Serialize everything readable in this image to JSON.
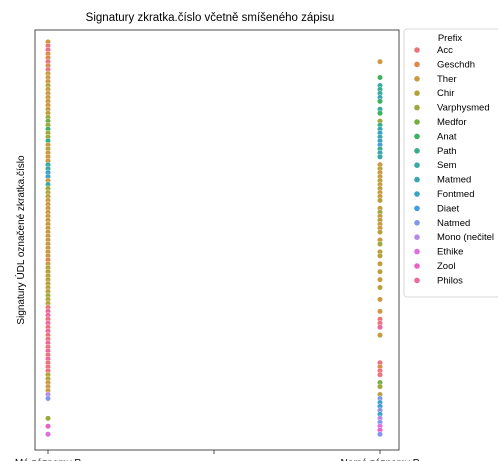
{
  "chart_data": {
    "type": "scatter",
    "title": "Signatury zkratka.číslo včetně smíšeného zápisu",
    "xlabel": "",
    "ylabel": "Signatury ÚDL označené zkratka.číslo",
    "categories": [
      "Má záznamy P",
      "Nemá záznamy P"
    ],
    "legend_placement": "outside-right",
    "legend": {
      "title": "Prefix",
      "entries": [
        {
          "name": "Acc",
          "color": "#e8747e"
        },
        {
          "name": "Geschdh",
          "color": "#dc8a4b"
        },
        {
          "name": "Ther",
          "color": "#c99a42"
        },
        {
          "name": "Chir",
          "color": "#b6a23b"
        },
        {
          "name": "Varphysmed",
          "color": "#9ea93c"
        },
        {
          "name": "Medfor",
          "color": "#74ad48"
        },
        {
          "name": "Anat",
          "color": "#3db160"
        },
        {
          "name": "Path",
          "color": "#37ad8c"
        },
        {
          "name": "Sem",
          "color": "#38aa9f"
        },
        {
          "name": "Matmed",
          "color": "#39a7af"
        },
        {
          "name": "Fontmed",
          "color": "#3aa2c2"
        },
        {
          "name": "Diaet",
          "color": "#459bdd"
        },
        {
          "name": "Natmed",
          "color": "#8496e8"
        },
        {
          "name": "Mono (nečitel",
          "color": "#b48ae6"
        },
        {
          "name": "Ethike",
          "color": "#df6ee0"
        },
        {
          "name": "Zool",
          "color": "#e864c4"
        },
        {
          "name": "Philos",
          "color": "#eb6a9e"
        }
      ]
    },
    "series": [
      {
        "category": "Má záznamy P",
        "points": [
          [
            0,
            "Ther"
          ],
          [
            1,
            "Acc"
          ],
          [
            2,
            "Acc"
          ],
          [
            3,
            "Geschdh"
          ],
          [
            4,
            "Geschdh"
          ],
          [
            5,
            "Acc"
          ],
          [
            6,
            "Geschdh"
          ],
          [
            7,
            "Acc"
          ],
          [
            8,
            "Ther"
          ],
          [
            9,
            "Ther"
          ],
          [
            10,
            "Ther"
          ],
          [
            11,
            "Chir"
          ],
          [
            12,
            "Ther"
          ],
          [
            13,
            "Ther"
          ],
          [
            14,
            "Ther"
          ],
          [
            15,
            "Ther"
          ],
          [
            16,
            "Ther"
          ],
          [
            17,
            "Ther"
          ],
          [
            18,
            "Chir"
          ],
          [
            19,
            "Varphysmed"
          ],
          [
            20,
            "Medfor"
          ],
          [
            21,
            "Varphysmed"
          ],
          [
            22,
            "Anat"
          ],
          [
            23,
            "Varphysmed"
          ],
          [
            24,
            "Varphysmed"
          ],
          [
            25,
            "Path"
          ],
          [
            26,
            "Ther"
          ],
          [
            27,
            "Chir"
          ],
          [
            28,
            "Ther"
          ],
          [
            29,
            "Ther"
          ],
          [
            30,
            "Ther"
          ],
          [
            31,
            "Sem"
          ],
          [
            32,
            "Sem"
          ],
          [
            33,
            "Fontmed"
          ],
          [
            34,
            "Fontmed"
          ],
          [
            35,
            "Ther"
          ],
          [
            36,
            "Sem"
          ],
          [
            37,
            "Varphysmed"
          ],
          [
            38,
            "Chir"
          ],
          [
            39,
            "Chir"
          ],
          [
            40,
            "Ther"
          ],
          [
            41,
            "Ther"
          ],
          [
            42,
            "Ther"
          ],
          [
            43,
            "Ther"
          ],
          [
            44,
            "Ther"
          ],
          [
            45,
            "Ther"
          ],
          [
            46,
            "Ther"
          ],
          [
            47,
            "Ther"
          ],
          [
            48,
            "Ther"
          ],
          [
            49,
            "Ther"
          ],
          [
            50,
            "Ther"
          ],
          [
            51,
            "Ther"
          ],
          [
            52,
            "Ther"
          ],
          [
            53,
            "Ther"
          ],
          [
            54,
            "Ther"
          ],
          [
            55,
            "Geschdh"
          ],
          [
            56,
            "Ther"
          ],
          [
            57,
            "Chir"
          ],
          [
            58,
            "Chir"
          ],
          [
            59,
            "Chir"
          ],
          [
            60,
            "Chir"
          ],
          [
            61,
            "Chir"
          ],
          [
            62,
            "Chir"
          ],
          [
            63,
            "Chir"
          ],
          [
            64,
            "Varphysmed"
          ],
          [
            65,
            "Chir"
          ],
          [
            66,
            "Chir"
          ],
          [
            67,
            "Acc"
          ],
          [
            68,
            "Philos"
          ],
          [
            69,
            "Philos"
          ],
          [
            70,
            "Acc"
          ],
          [
            71,
            "Philos"
          ],
          [
            72,
            "Acc"
          ],
          [
            73,
            "Philos"
          ],
          [
            74,
            "Acc"
          ],
          [
            75,
            "Acc"
          ],
          [
            76,
            "Philos"
          ],
          [
            77,
            "Acc"
          ],
          [
            78,
            "Philos"
          ],
          [
            79,
            "Acc"
          ],
          [
            80,
            "Philos"
          ],
          [
            81,
            "Acc"
          ],
          [
            82,
            "Acc"
          ],
          [
            83,
            "Acc"
          ],
          [
            84,
            "Chir"
          ],
          [
            85,
            "Chir"
          ],
          [
            86,
            "Ther"
          ],
          [
            87,
            "Ther"
          ],
          [
            88,
            "Ther"
          ],
          [
            89,
            "Mono (nečitel"
          ],
          [
            90,
            "Natmed"
          ],
          [
            95,
            "Varphysmed"
          ],
          [
            97,
            "Zool"
          ],
          [
            99,
            "Ethike"
          ]
        ]
      },
      {
        "category": "Nemá záznamy P",
        "points": [
          [
            5,
            "Ther"
          ],
          [
            9,
            "Anat"
          ],
          [
            11,
            "Sem"
          ],
          [
            12,
            "Path"
          ],
          [
            13,
            "Sem"
          ],
          [
            14,
            "Matmed"
          ],
          [
            15,
            "Anat"
          ],
          [
            17,
            "Sem"
          ],
          [
            18,
            "Anat"
          ],
          [
            20,
            "Varphysmed"
          ],
          [
            21,
            "Path"
          ],
          [
            22,
            "Matmed"
          ],
          [
            23,
            "Fontmed"
          ],
          [
            24,
            "Matmed"
          ],
          [
            25,
            "Fontmed"
          ],
          [
            26,
            "Diaet"
          ],
          [
            27,
            "Path"
          ],
          [
            28,
            "Matmed"
          ],
          [
            29,
            "Sem"
          ],
          [
            31,
            "Ther"
          ],
          [
            32,
            "Chir"
          ],
          [
            33,
            "Ther"
          ],
          [
            34,
            "Ther"
          ],
          [
            35,
            "Chir"
          ],
          [
            36,
            "Ther"
          ],
          [
            37,
            "Chir"
          ],
          [
            38,
            "Ther"
          ],
          [
            39,
            "Ther"
          ],
          [
            40,
            "Chir"
          ],
          [
            42,
            "Ther"
          ],
          [
            43,
            "Varphysmed"
          ],
          [
            44,
            "Ther"
          ],
          [
            45,
            "Chir"
          ],
          [
            46,
            "Ther"
          ],
          [
            47,
            "Ther"
          ],
          [
            48,
            "Chir"
          ],
          [
            50,
            "Ther"
          ],
          [
            51,
            "Varphysmed"
          ],
          [
            53,
            "Chir"
          ],
          [
            54,
            "Chir"
          ],
          [
            56,
            "Ther"
          ],
          [
            58,
            "Chir"
          ],
          [
            60,
            "Ther"
          ],
          [
            62,
            "Chir"
          ],
          [
            65,
            "Ther"
          ],
          [
            68,
            "Ther"
          ],
          [
            70,
            "Acc"
          ],
          [
            71,
            "Acc"
          ],
          [
            72,
            "Philos"
          ],
          [
            74,
            "Ther"
          ],
          [
            81,
            "Acc"
          ],
          [
            82,
            "Geschdh"
          ],
          [
            83,
            "Acc"
          ],
          [
            84,
            "Acc"
          ],
          [
            86,
            "Medfor"
          ],
          [
            87,
            "Varphysmed"
          ],
          [
            89,
            "Chir"
          ],
          [
            90,
            "Natmed"
          ],
          [
            91,
            "Fontmed"
          ],
          [
            92,
            "Diaet"
          ],
          [
            93,
            "Natmed"
          ],
          [
            94,
            "Fontmed"
          ],
          [
            95,
            "Mono (nečitel"
          ],
          [
            96,
            "Natmed"
          ],
          [
            97,
            "Ethike"
          ],
          [
            98,
            "Zool"
          ],
          [
            99,
            "Natmed"
          ]
        ]
      }
    ],
    "y_range": [
      -3,
      103
    ],
    "y_inverted": true,
    "grid": false
  }
}
